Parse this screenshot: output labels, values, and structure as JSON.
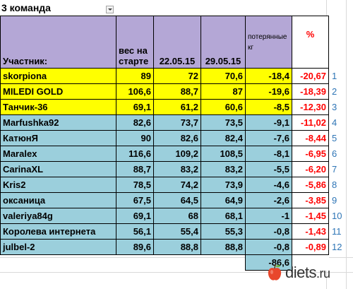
{
  "sheet": {
    "title": "3 команда",
    "headers": {
      "name": "Участник:",
      "start": "вес на старте",
      "d1": "22.05.15",
      "d2": "29.05.15",
      "loss": "потерянные кг",
      "pct": "%"
    },
    "rows": [
      {
        "name": "skorpiona",
        "start": "89",
        "d1": "72",
        "d2": "70,6",
        "loss": "-18,4",
        "pct": "-20,67",
        "rank": "1"
      },
      {
        "name": "MILEDI GOLD",
        "start": "106,6",
        "d1": "88,7",
        "d2": "87",
        "loss": "-19,6",
        "pct": "-18,39",
        "rank": "2"
      },
      {
        "name": "Танчик-36",
        "start": "69,1",
        "d1": "61,2",
        "d2": "60,6",
        "loss": "-8,5",
        "pct": "-12,30",
        "rank": "3"
      },
      {
        "name": "Marfushka92",
        "start": "82,6",
        "d1": "73,7",
        "d2": "73,5",
        "loss": "-9,1",
        "pct": "-11,02",
        "rank": "4"
      },
      {
        "name": "КатюнЯ",
        "start": "90",
        "d1": "82,6",
        "d2": "82,4",
        "loss": "-7,6",
        "pct": "-8,44",
        "rank": "5"
      },
      {
        "name": "Maralex",
        "start": "116,6",
        "d1": "109,2",
        "d2": "108,5",
        "loss": "-8,1",
        "pct": "-6,95",
        "rank": "6"
      },
      {
        "name": "CarinaXL",
        "start": "88,7",
        "d1": "83,2",
        "d2": "83,2",
        "loss": "-5,5",
        "pct": "-6,20",
        "rank": "7"
      },
      {
        "name": "Kris2",
        "start": "78,5",
        "d1": "74,2",
        "d2": "73,9",
        "loss": "-4,6",
        "pct": "-5,86",
        "rank": "8"
      },
      {
        "name": "оксаница",
        "start": "67,5",
        "d1": "64,5",
        "d2": "64,9",
        "loss": "-2,6",
        "pct": "-3,85",
        "rank": "9"
      },
      {
        "name": "valeriya84g",
        "start": "69,1",
        "d1": "68",
        "d2": "68,1",
        "loss": "-1",
        "pct": "-1,45",
        "rank": "10"
      },
      {
        "name": "Королева интернета",
        "start": "56,1",
        "d1": "55,4",
        "d2": "55,3",
        "loss": "-0,8",
        "pct": "-1,43",
        "rank": "11"
      },
      {
        "name": "julbel-2",
        "start": "89,6",
        "d1": "88,8",
        "d2": "88,8",
        "loss": "-0,8",
        "pct": "-0,89",
        "rank": "12"
      }
    ],
    "total_loss": "-86,6",
    "highlighted_rows": 3
  },
  "colors": {
    "header": "#b4a7d6",
    "top3": "#ffff00",
    "rest": "#9bcfdc",
    "percent_text": "#ff0000",
    "rank_text": "#2e75b6"
  },
  "watermark": {
    "brand": "diets",
    "suffix": ".ru",
    "icon": "apple-icon"
  }
}
